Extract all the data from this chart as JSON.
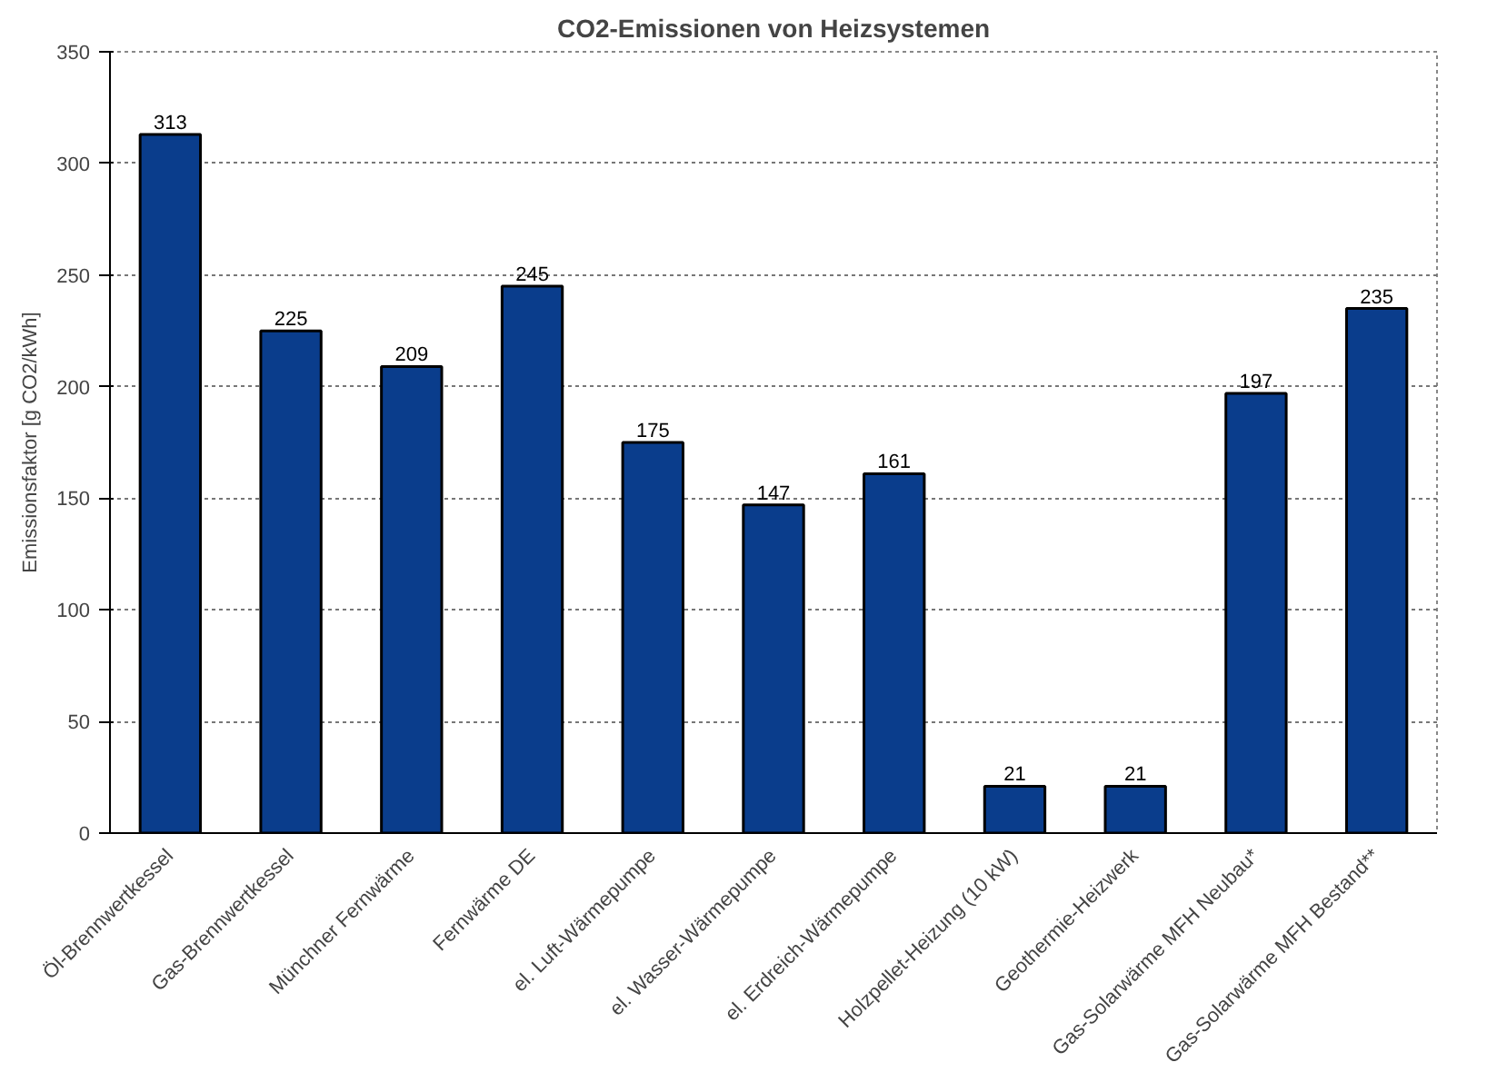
{
  "chart_data": {
    "type": "bar",
    "title": "CO2-Emissionen von Heizsystemen",
    "ylabel": "Emissionsfaktor [g CO2/kWh]",
    "categories": [
      "Öl-Brennwertkessel",
      "Gas-Brennwertkessel",
      "Münchner Fernwärme",
      "Fernwärme DE",
      "el. Luft-Wärmepumpe",
      "el. Wasser-Wärmepumpe",
      "el. Erdreich-Wärmepumpe",
      "Holzpellet-Heizung (10 kW)",
      "Geothermie-Heizwerk",
      "Gas-Solarwärme MFH Neubau*",
      "Gas-Solarwärme MFH Bestand**"
    ],
    "values": [
      313,
      225,
      209,
      245,
      175,
      147,
      161,
      21,
      21,
      197,
      235
    ],
    "color": "#0a3d8c",
    "ylim": [
      0,
      350
    ],
    "yticks": [
      0,
      50,
      100,
      150,
      200,
      250,
      300,
      350
    ],
    "grid": "y",
    "data_labels": true
  }
}
